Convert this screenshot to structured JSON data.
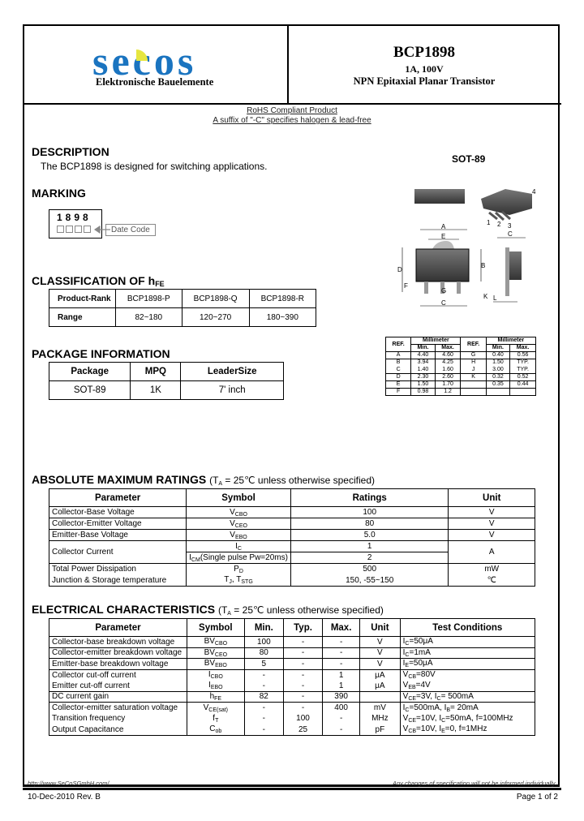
{
  "header": {
    "logo_text": "secos",
    "logo_subtitle": "Elektronische Bauelemente",
    "part_number": "BCP1898",
    "rating": "1A, 100V",
    "description": "NPN Epitaxial Planar Transistor",
    "brand_colors": {
      "blue": "#1a74c0",
      "yellow": "#e6e640"
    }
  },
  "rohs": {
    "line1": "RoHS Compliant Product",
    "line2": "A suffix of \"-C\" specifies halogen & lead-free"
  },
  "description": {
    "heading": "DESCRIPTION",
    "text": "The BCP1898 is designed for switching applications."
  },
  "package_label": "SOT-89",
  "marking": {
    "heading": "MARKING",
    "code": "1898",
    "date_code_label": "Date Code"
  },
  "classification": {
    "heading": "CLASSIFICATION OF h",
    "heading_sub": "FE",
    "rows": [
      [
        "Product-Rank",
        "BCP1898-P",
        "BCP1898-Q",
        "BCP1898-R"
      ],
      [
        "Range",
        "82~180",
        "120~270",
        "180~390"
      ]
    ]
  },
  "package_info": {
    "heading": "PACKAGE INFORMATION",
    "headers": [
      "Package",
      "MPQ",
      "LeaderSize"
    ],
    "rows": [
      [
        "SOT-89",
        "1K",
        "7' inch"
      ]
    ]
  },
  "dimensions": {
    "headers": {
      "ref": "REF.",
      "unit": "Millimeter",
      "min": "Min.",
      "max": "Max."
    },
    "rows": [
      [
        "A",
        "4.40",
        "4.60",
        "G",
        "0.40",
        "0.56"
      ],
      [
        "B",
        "3.94",
        "4.25",
        "H",
        "1.50",
        "TYP."
      ],
      [
        "C",
        "1.40",
        "1.60",
        "J",
        "3.00",
        "TYP."
      ],
      [
        "D",
        "2.30",
        "2.60",
        "K",
        "0.32",
        "0.52"
      ],
      [
        "E",
        "1.50",
        "1.70",
        "",
        "0.35",
        "0.44"
      ],
      [
        "F",
        "0.98",
        "1.2",
        "",
        "",
        ""
      ]
    ],
    "drawing_labels": [
      "A",
      "B",
      "C",
      "D",
      "E",
      "F",
      "G",
      "H",
      "J",
      "K",
      "1",
      "2",
      "3",
      "4"
    ]
  },
  "abs_max": {
    "heading": "ABSOLUTE MAXIMUM RATINGS",
    "note": [
      "(T",
      {
        "sub": "A"
      },
      " = 25℃ unless otherwise specified)"
    ],
    "headers": [
      "Parameter",
      "Symbol",
      "Ratings",
      "Unit"
    ],
    "rows": [
      {
        "param": "Collector-Base Voltage",
        "symbol": [
          "V",
          {
            "sub": "CBO"
          }
        ],
        "rating": "100",
        "unit": "V"
      },
      {
        "param": "Collector-Emitter Voltage",
        "symbol": [
          "V",
          {
            "sub": "CEO"
          }
        ],
        "rating": "80",
        "unit": "V"
      },
      {
        "param": "Emitter-Base Voltage",
        "symbol": [
          "V",
          {
            "sub": "EBO"
          }
        ],
        "rating": "5.0",
        "unit": "V"
      },
      {
        "param": "Collector Current",
        "symbol": [
          "I",
          {
            "sub": "C"
          }
        ],
        "rating": "1",
        "unit": "A",
        "symbol2": [
          "I",
          {
            "sub": "CM"
          },
          "(Single pulse Pw=20ms)"
        ],
        "rating2": "2"
      },
      {
        "param": "Total Power Dissipation",
        "symbol": [
          "P",
          {
            "sub": "D"
          }
        ],
        "rating": "500",
        "unit": "mW"
      },
      {
        "param": "Junction & Storage temperature",
        "symbol": [
          "T",
          {
            "sub": "J"
          },
          ", T",
          {
            "sub": "STG"
          }
        ],
        "rating": "150, -55~150",
        "unit": "℃"
      }
    ]
  },
  "electrical": {
    "heading": "ELECTRICAL CHARACTERISTICS",
    "note": [
      "(T",
      {
        "sub": "A"
      },
      " = 25℃ unless otherwise specified)"
    ],
    "headers": [
      "Parameter",
      "Symbol",
      "Min.",
      "Typ.",
      "Max.",
      "Unit",
      "Test Conditions"
    ],
    "rows": [
      {
        "param": "Collector-base breakdown voltage",
        "symbol": [
          "BV",
          {
            "sub": "CBO"
          }
        ],
        "min": "100",
        "typ": "-",
        "max": "-",
        "unit": "V",
        "cond": [
          "I",
          {
            "sub": "C"
          },
          "=50μA"
        ]
      },
      {
        "param": "Collector-emitter breakdown voltage",
        "symbol": [
          "BV",
          {
            "sub": "CEO"
          }
        ],
        "min": "80",
        "typ": "-",
        "max": "-",
        "unit": "V",
        "cond": [
          "I",
          {
            "sub": "C"
          },
          "=1mA"
        ]
      },
      {
        "param": "Emitter-base breakdown voltage",
        "symbol": [
          "BV",
          {
            "sub": "EBO"
          }
        ],
        "min": "5",
        "typ": "-",
        "max": "-",
        "unit": "V",
        "cond": [
          "I",
          {
            "sub": "E"
          },
          "=50μA"
        ]
      },
      {
        "param": "Collector cut-off current",
        "symbol": [
          "I",
          {
            "sub": "CBO"
          }
        ],
        "min": "-",
        "typ": "-",
        "max": "1",
        "unit": "μA",
        "cond": [
          "V",
          {
            "sub": "CB"
          },
          "=80V"
        ]
      },
      {
        "param": "Emitter cut-off current",
        "symbol": [
          "I",
          {
            "sub": "EBO"
          }
        ],
        "min": "-",
        "typ": "-",
        "max": "1",
        "unit": "μA",
        "cond": [
          "V",
          {
            "sub": "EB"
          },
          "=4V"
        ]
      },
      {
        "param": "DC current gain",
        "symbol": [
          "h",
          {
            "sub": "FE"
          }
        ],
        "min": "82",
        "typ": "-",
        "max": "390",
        "unit": "",
        "cond": [
          "V",
          {
            "sub": "CE"
          },
          "=3V, I",
          {
            "sub": "C"
          },
          "= 500mA"
        ]
      },
      {
        "param": "Collector-emitter saturation voltage",
        "symbol": [
          "V",
          {
            "sub": "CE(sat)"
          }
        ],
        "min": "-",
        "typ": "-",
        "max": "400",
        "unit": "mV",
        "cond": [
          "I",
          {
            "sub": "C"
          },
          "=500mA, I",
          {
            "sub": "B"
          },
          "= 20mA"
        ]
      },
      {
        "param": "Transition frequency",
        "symbol": [
          "f",
          {
            "sub": "T"
          }
        ],
        "min": "-",
        "typ": "100",
        "max": "-",
        "unit": "MHz",
        "cond": [
          "V",
          {
            "sub": "CE"
          },
          "=10V, I",
          {
            "sub": "C"
          },
          "=50mA, f=100MHz"
        ]
      },
      {
        "param": "Output Capacitance",
        "symbol": [
          "C",
          {
            "sub": "ob"
          }
        ],
        "min": "-",
        "typ": "25",
        "max": "-",
        "unit": "pF",
        "cond": [
          "V",
          {
            "sub": "CB"
          },
          "=10V, I",
          {
            "sub": "E"
          },
          "=0, f=1MHz"
        ]
      }
    ]
  },
  "footer": {
    "url": "http://www.SeCoSGmbH.com/",
    "notice": "Any changes of specification will not be informed individually.",
    "date_rev": "10-Dec-2010 Rev. B",
    "page": "Page 1 of 2"
  }
}
